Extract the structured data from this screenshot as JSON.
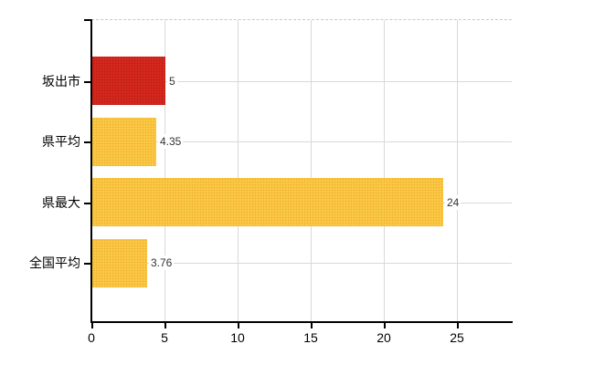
{
  "chart_data": {
    "type": "bar",
    "orientation": "horizontal",
    "title": "",
    "categories": [
      "坂出市",
      "県平均",
      "県最大",
      "全国平均"
    ],
    "values": [
      5,
      4.35,
      24,
      3.76
    ],
    "value_labels": [
      "5",
      "4.35",
      "24",
      "3.76"
    ],
    "bar_colors": [
      "#d3261c",
      "#f9c741",
      "#f9c741",
      "#f9c741"
    ],
    "bar_dot_colors": [
      "#a81f14",
      "#ee9f33",
      "#ee9f33",
      "#ee9f33"
    ],
    "x_ticks": [
      0,
      5,
      10,
      15,
      20,
      25
    ],
    "x_tick_labels": [
      "0",
      "5",
      "10",
      "15",
      "20",
      "25"
    ],
    "xlim": [
      0,
      28.75
    ],
    "grid": true,
    "legend": false,
    "axis_color": "#000000",
    "grid_color": "#d9d9d9",
    "value_label_color": "#333333",
    "category_label_color": "#000000",
    "background": "#ffffff"
  }
}
